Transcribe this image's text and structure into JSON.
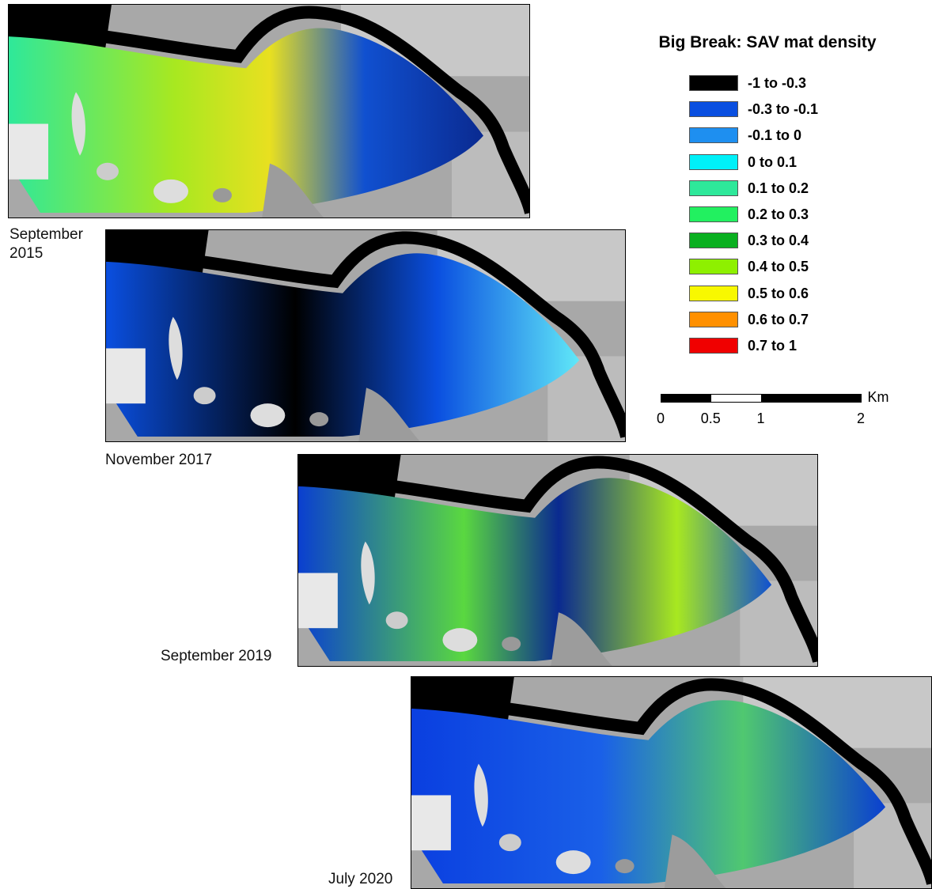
{
  "legend": {
    "title": "Big Break: SAV mat density",
    "items": [
      {
        "label": "-1 to -0.3",
        "color": "#000000"
      },
      {
        "label": "-0.3 to -0.1",
        "color": "#0a4fe0"
      },
      {
        "label": "-0.1 to 0",
        "color": "#1e8ff0"
      },
      {
        "label": "0 to 0.1",
        "color": "#00f0f8"
      },
      {
        "label": "0.1 to 0.2",
        "color": "#2ee89a"
      },
      {
        "label": "0.2 to 0.3",
        "color": "#22f060"
      },
      {
        "label": "0.3 to 0.4",
        "color": "#0ab020"
      },
      {
        "label": "0.4 to 0.5",
        "color": "#8ef000"
      },
      {
        "label": "0.5 to 0.6",
        "color": "#f8f800"
      },
      {
        "label": "0.6 to 0.7",
        "color": "#ff9000"
      },
      {
        "label": "0.7 to 1",
        "color": "#f00000"
      }
    ]
  },
  "scale_bar": {
    "unit": "Km",
    "ticks": [
      0,
      0.5,
      1,
      2
    ]
  },
  "panels": [
    {
      "label": "September 2015"
    },
    {
      "label": "November 2017"
    },
    {
      "label": "September 2019"
    },
    {
      "label": "July 2020"
    }
  ]
}
